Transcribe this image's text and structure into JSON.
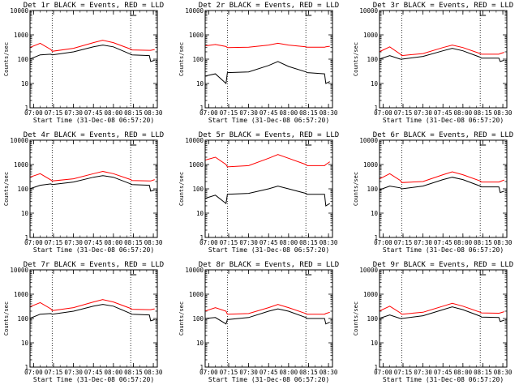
{
  "chart_data": [
    {
      "type": "line",
      "title": "Det 1r BLACK = Events, RED = LLD",
      "xlabel": "Start Time (31-Dec-08 06:57:20)",
      "ylabel": "Counts/sec",
      "ylim": [
        1,
        10000
      ],
      "yscale": "log",
      "xticks": [
        "07:00",
        "07:15",
        "07:30",
        "07:45",
        "08:00",
        "08:15",
        "08:30"
      ],
      "yticks": [
        "1",
        "10",
        "100",
        "1000",
        "10000"
      ],
      "vlines": [
        "07:14",
        "08:13"
      ],
      "top_marker": "08:13",
      "x": [
        "06:57",
        "07:05",
        "07:13",
        "07:14",
        "07:30",
        "07:45",
        "07:52",
        "08:00",
        "08:13",
        "08:14",
        "08:27",
        "08:28",
        "08:31"
      ],
      "series": [
        {
          "name": "BLACK = Events",
          "color": "#000000",
          "values": [
            100,
            150,
            160,
            150,
            200,
            320,
            380,
            320,
            160,
            150,
            140,
            80,
            90
          ]
        },
        {
          "name": "RED = LLD",
          "color": "#ff0000",
          "values": [
            300,
            450,
            250,
            210,
            280,
            480,
            600,
            480,
            260,
            240,
            230,
            230,
            250
          ]
        }
      ]
    },
    {
      "type": "line",
      "title": "Det 2r BLACK = Events, RED = LLD",
      "xlabel": "Start Time (31-Dec-08 06:57:20)",
      "ylabel": "Counts/sec",
      "ylim": [
        1,
        10000
      ],
      "yscale": "log",
      "xticks": [
        "07:00",
        "07:15",
        "07:30",
        "07:45",
        "08:00",
        "08:15",
        "08:30"
      ],
      "yticks": [
        "1",
        "10",
        "100",
        "1000",
        "10000"
      ],
      "vlines": [
        "07:14",
        "08:13"
      ],
      "top_marker": "08:13",
      "x": [
        "06:57",
        "07:05",
        "07:13",
        "07:14",
        "07:30",
        "07:45",
        "07:52",
        "08:00",
        "08:13",
        "08:14",
        "08:27",
        "08:28",
        "08:31"
      ],
      "series": [
        {
          "name": "BLACK = Events",
          "color": "#000000",
          "values": [
            20,
            25,
            10,
            28,
            30,
            55,
            80,
            50,
            30,
            28,
            25,
            10,
            12
          ]
        },
        {
          "name": "RED = LLD",
          "color": "#ff0000",
          "values": [
            350,
            400,
            330,
            300,
            310,
            380,
            450,
            380,
            320,
            310,
            310,
            320,
            340
          ]
        }
      ]
    },
    {
      "type": "line",
      "title": "Det 3r BLACK = Events, RED = LLD",
      "xlabel": "Start Time (31-Dec-08 06:57:20)",
      "ylabel": "Counts/sec",
      "ylim": [
        1,
        10000
      ],
      "yscale": "log",
      "xticks": [
        "07:00",
        "07:15",
        "07:30",
        "07:45",
        "08:00",
        "08:15",
        "08:30"
      ],
      "yticks": [
        "1",
        "10",
        "100",
        "1000",
        "10000"
      ],
      "vlines": [
        "07:14",
        "08:13"
      ],
      "top_marker": "08:13",
      "x": [
        "06:57",
        "07:05",
        "07:13",
        "07:14",
        "07:30",
        "07:45",
        "07:52",
        "08:00",
        "08:13",
        "08:14",
        "08:27",
        "08:28",
        "08:31"
      ],
      "series": [
        {
          "name": "BLACK = Events",
          "color": "#000000",
          "values": [
            100,
            140,
            100,
            100,
            130,
            220,
            280,
            220,
            120,
            110,
            110,
            80,
            90
          ]
        },
        {
          "name": "RED = LLD",
          "color": "#ff0000",
          "values": [
            200,
            320,
            160,
            140,
            170,
            300,
            380,
            300,
            170,
            160,
            160,
            170,
            190
          ]
        }
      ]
    },
    {
      "type": "line",
      "title": "Det 4r BLACK = Events, RED = LLD",
      "xlabel": "Start Time (31-Dec-08 06:57:20)",
      "ylabel": "Counts/sec",
      "ylim": [
        1,
        10000
      ],
      "yscale": "log",
      "xticks": [
        "07:00",
        "07:15",
        "07:30",
        "07:45",
        "08:00",
        "08:15",
        "08:30"
      ],
      "yticks": [
        "1",
        "10",
        "100",
        "1000",
        "10000"
      ],
      "vlines": [
        "07:14",
        "08:13"
      ],
      "top_marker": "08:13",
      "x": [
        "06:57",
        "07:05",
        "07:13",
        "07:14",
        "07:30",
        "07:45",
        "07:52",
        "08:00",
        "08:13",
        "08:14",
        "08:27",
        "08:28",
        "08:31"
      ],
      "series": [
        {
          "name": "BLACK = Events",
          "color": "#000000",
          "values": [
            100,
            140,
            160,
            150,
            190,
            300,
            350,
            300,
            160,
            150,
            140,
            80,
            90
          ]
        },
        {
          "name": "RED = LLD",
          "color": "#ff0000",
          "values": [
            300,
            420,
            230,
            210,
            260,
            420,
            520,
            420,
            240,
            220,
            210,
            210,
            240
          ]
        }
      ]
    },
    {
      "type": "line",
      "title": "Det 5r BLACK = Events, RED = LLD",
      "xlabel": "Start Time (31-Dec-08 06:57:20)",
      "ylabel": "Counts/sec",
      "ylim": [
        1,
        10000
      ],
      "yscale": "log",
      "xticks": [
        "07:00",
        "07:15",
        "07:30",
        "07:45",
        "08:00",
        "08:15",
        "08:30"
      ],
      "yticks": [
        "1",
        "10",
        "100",
        "1000",
        "10000"
      ],
      "vlines": [
        "07:14",
        "08:13"
      ],
      "top_marker": "08:13",
      "x": [
        "06:57",
        "07:05",
        "07:13",
        "07:14",
        "07:30",
        "07:45",
        "07:52",
        "08:00",
        "08:13",
        "08:14",
        "08:27",
        "08:28",
        "08:31"
      ],
      "series": [
        {
          "name": "BLACK = Events",
          "color": "#000000",
          "values": [
            40,
            55,
            25,
            60,
            65,
            100,
            130,
            100,
            65,
            60,
            60,
            20,
            25
          ]
        },
        {
          "name": "RED = LLD",
          "color": "#ff0000",
          "values": [
            1500,
            2000,
            1000,
            800,
            900,
            1800,
            2600,
            1800,
            1000,
            900,
            900,
            1000,
            1300
          ]
        }
      ]
    },
    {
      "type": "line",
      "title": "Det 6r BLACK = Events, RED = LLD",
      "xlabel": "Start Time (31-Dec-08 06:57:20)",
      "ylabel": "Counts/sec",
      "ylim": [
        1,
        10000
      ],
      "yscale": "log",
      "xticks": [
        "07:00",
        "07:15",
        "07:30",
        "07:45",
        "08:00",
        "08:15",
        "08:30"
      ],
      "yticks": [
        "1",
        "10",
        "100",
        "1000",
        "10000"
      ],
      "vlines": [
        "07:14",
        "08:13"
      ],
      "top_marker": "08:13",
      "x": [
        "06:57",
        "07:05",
        "07:13",
        "07:14",
        "07:30",
        "07:45",
        "07:52",
        "08:00",
        "08:13",
        "08:14",
        "08:27",
        "08:28",
        "08:31"
      ],
      "series": [
        {
          "name": "BLACK = Events",
          "color": "#000000",
          "values": [
            90,
            130,
            110,
            100,
            130,
            240,
            300,
            240,
            130,
            120,
            120,
            70,
            80
          ]
        },
        {
          "name": "RED = LLD",
          "color": "#ff0000",
          "values": [
            250,
            420,
            220,
            180,
            200,
            380,
            500,
            380,
            210,
            190,
            190,
            200,
            230
          ]
        }
      ]
    },
    {
      "type": "line",
      "title": "Det 7r BLACK = Events, RED = LLD",
      "xlabel": "Start Time (31-Dec-08 06:57:20)",
      "ylabel": "Counts/sec",
      "ylim": [
        1,
        10000
      ],
      "yscale": "log",
      "xticks": [
        "07:00",
        "07:15",
        "07:30",
        "07:45",
        "08:00",
        "08:15",
        "08:30"
      ],
      "yticks": [
        "1",
        "10",
        "100",
        "1000",
        "10000"
      ],
      "vlines": [
        "07:14",
        "08:13"
      ],
      "top_marker": "08:13",
      "x": [
        "06:57",
        "07:05",
        "07:13",
        "07:14",
        "07:30",
        "07:45",
        "07:52",
        "08:00",
        "08:13",
        "08:14",
        "08:27",
        "08:28",
        "08:31"
      ],
      "series": [
        {
          "name": "BLACK = Events",
          "color": "#000000",
          "values": [
            100,
            150,
            160,
            150,
            200,
            320,
            380,
            320,
            160,
            150,
            140,
            80,
            90
          ]
        },
        {
          "name": "RED = LLD",
          "color": "#ff0000",
          "values": [
            300,
            450,
            250,
            210,
            280,
            480,
            600,
            480,
            260,
            240,
            230,
            230,
            250
          ]
        }
      ]
    },
    {
      "type": "line",
      "title": "Det 8r BLACK = Events, RED = LLD",
      "xlabel": "Start Time (31-Dec-08 06:57:20)",
      "ylabel": "Counts/sec",
      "ylim": [
        1,
        10000
      ],
      "yscale": "log",
      "xticks": [
        "07:00",
        "07:15",
        "07:30",
        "07:45",
        "08:00",
        "08:15",
        "08:30"
      ],
      "yticks": [
        "1",
        "10",
        "100",
        "1000",
        "10000"
      ],
      "vlines": [
        "07:14",
        "08:13"
      ],
      "top_marker": "08:13",
      "x": [
        "06:57",
        "07:05",
        "07:13",
        "07:14",
        "07:30",
        "07:45",
        "07:52",
        "08:00",
        "08:13",
        "08:14",
        "08:27",
        "08:28",
        "08:31"
      ],
      "series": [
        {
          "name": "BLACK = Events",
          "color": "#000000",
          "values": [
            100,
            110,
            60,
            90,
            110,
            200,
            250,
            200,
            110,
            100,
            100,
            60,
            70
          ]
        },
        {
          "name": "RED = LLD",
          "color": "#ff0000",
          "values": [
            200,
            280,
            200,
            150,
            160,
            280,
            380,
            280,
            160,
            150,
            150,
            160,
            180
          ]
        }
      ]
    },
    {
      "type": "line",
      "title": "Det 9r BLACK = Events, RED = LLD",
      "xlabel": "Start Time (31-Dec-08 06:57:20)",
      "ylabel": "Counts/sec",
      "ylim": [
        1,
        10000
      ],
      "yscale": "log",
      "xticks": [
        "07:00",
        "07:15",
        "07:30",
        "07:45",
        "08:00",
        "08:15",
        "08:30"
      ],
      "yticks": [
        "1",
        "10",
        "100",
        "1000",
        "10000"
      ],
      "vlines": [
        "07:14",
        "08:13"
      ],
      "top_marker": "08:13",
      "x": [
        "06:57",
        "07:05",
        "07:13",
        "07:14",
        "07:30",
        "07:45",
        "07:52",
        "08:00",
        "08:13",
        "08:14",
        "08:27",
        "08:28",
        "08:31"
      ],
      "series": [
        {
          "name": "BLACK = Events",
          "color": "#000000",
          "values": [
            100,
            140,
            100,
            100,
            130,
            230,
            300,
            230,
            125,
            115,
            110,
            75,
            85
          ]
        },
        {
          "name": "RED = LLD",
          "color": "#ff0000",
          "values": [
            200,
            320,
            170,
            150,
            180,
            320,
            420,
            320,
            180,
            170,
            165,
            170,
            190
          ]
        }
      ]
    }
  ]
}
